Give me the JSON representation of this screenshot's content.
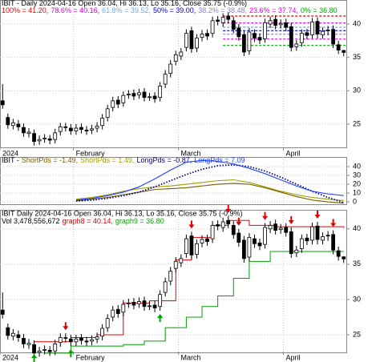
{
  "chart_data": [
    {
      "type": "candlestick",
      "title": "IBIT - Daily 2024-04-16 Open 36.04, Hi 36.13, Lo 35.16, Close 35.75 (-0.9%)",
      "fib": [
        {
          "text": "100% = 41.20,",
          "value": 41.2,
          "color": "#e00000"
        },
        {
          "text": "78.6% = 40.16,",
          "value": 40.16,
          "color": "#d000d0"
        },
        {
          "text": "61.8% = 39.52,",
          "value": 39.52,
          "color": "#6fa8dc"
        },
        {
          "text": "50% = 39.00,",
          "value": 39.0,
          "color": "#0000e0"
        },
        {
          "text": "38.2% = 38.48,",
          "value": 38.48,
          "color": "#8e7cc3"
        },
        {
          "text": "23.6% = 37.74,",
          "value": 37.74,
          "color": "#e000e0"
        },
        {
          "text": "0% = 36.80",
          "value": 36.8,
          "color": "#00a000"
        }
      ],
      "categories": [
        "2024",
        null,
        null,
        null,
        null,
        null,
        null,
        null,
        null,
        null,
        null,
        null,
        null,
        null,
        "February",
        null,
        null,
        null,
        null,
        null,
        null,
        null,
        null,
        null,
        null,
        null,
        null,
        null,
        null,
        null,
        null,
        null,
        null,
        null,
        "March",
        null,
        null,
        null,
        null,
        null,
        null,
        null,
        null,
        null,
        null,
        null,
        null,
        null,
        null,
        null,
        null,
        null,
        null,
        null,
        "April",
        null,
        null,
        null,
        null,
        null,
        null,
        null,
        null,
        null,
        null,
        null
      ],
      "open": [
        28.5,
        26.0,
        24.8,
        25.0,
        24.5,
        23.6,
        23.6,
        22.5,
        22.8,
        22.8,
        22.7,
        23.9,
        24.6,
        24.4,
        24.0,
        24.5,
        24.1,
        24.1,
        24.4,
        24.8,
        26.0,
        27.5,
        28.6,
        28.2,
        29.4,
        29.6,
        29.4,
        29.8,
        29.1,
        29.2,
        29.0,
        31.0,
        32.6,
        34.4,
        35.2,
        36.5,
        39.0,
        36.4,
        38.0,
        38.6,
        38.6,
        40.6,
        40.2,
        41.2,
        40.5,
        39.4,
        38.4,
        36.0,
        38.6,
        38.0,
        37.8,
        40.0,
        40.7,
        39.9,
        40.2,
        39.6,
        36.6,
        37.2,
        38.7,
        38.4,
        40.4,
        38.4,
        39.1,
        39.2,
        36.9,
        36.04
      ],
      "high": [
        31.0,
        26.6,
        25.8,
        25.6,
        25.1,
        24.4,
        24.2,
        23.3,
        23.5,
        23.4,
        24.3,
        25.2,
        25.2,
        25.0,
        25.0,
        25.1,
        24.7,
        24.9,
        25.3,
        26.5,
        27.9,
        29.1,
        29.2,
        29.9,
        30.1,
        30.2,
        30.3,
        30.4,
        29.7,
        29.8,
        31.3,
        33.1,
        34.6,
        36.0,
        36.4,
        39.2,
        39.6,
        38.5,
        39.1,
        39.2,
        41.1,
        41.2,
        41.6,
        41.8,
        41.1,
        40.0,
        39.0,
        39.4,
        39.2,
        38.6,
        40.8,
        41.1,
        41.3,
        40.7,
        40.8,
        40.2,
        37.6,
        39.2,
        39.3,
        40.9,
        41.0,
        39.5,
        39.7,
        39.8,
        37.5,
        36.13
      ],
      "low": [
        27.3,
        24.3,
        24.2,
        24.0,
        23.1,
        23.0,
        21.8,
        21.9,
        22.2,
        22.0,
        22.1,
        23.3,
        23.9,
        23.4,
        23.4,
        23.6,
        23.4,
        23.5,
        23.8,
        24.2,
        25.4,
        26.9,
        27.4,
        27.6,
        28.8,
        28.6,
        28.8,
        28.4,
        28.5,
        28.2,
        28.4,
        30.4,
        32.0,
        33.8,
        34.6,
        35.9,
        35.7,
        35.8,
        37.4,
        37.6,
        38.0,
        39.8,
        39.6,
        40.1,
        38.6,
        37.5,
        35.2,
        35.4,
        37.3,
        37.0,
        37.2,
        39.4,
        39.2,
        39.3,
        38.9,
        35.9,
        36.0,
        36.6,
        37.7,
        37.8,
        37.8,
        37.8,
        38.3,
        36.4,
        35.5,
        35.16
      ],
      "close": [
        27.9,
        24.9,
        25.2,
        24.6,
        23.7,
        23.8,
        22.4,
        22.7,
        22.9,
        22.6,
        23.7,
        24.6,
        24.5,
        24.0,
        24.4,
        24.2,
        24.0,
        24.3,
        24.7,
        25.9,
        27.3,
        28.5,
        28.0,
        29.3,
        29.5,
        29.2,
        29.7,
        29.0,
        29.1,
        28.8,
        30.7,
        32.5,
        34.0,
        35.4,
        35.8,
        38.6,
        36.3,
        37.9,
        38.5,
        38.2,
        40.5,
        40.4,
        41.0,
        40.7,
        39.2,
        38.1,
        35.8,
        38.8,
        37.9,
        37.6,
        40.2,
        40.5,
        39.8,
        40.1,
        39.5,
        36.5,
        37.0,
        38.6,
        38.3,
        40.3,
        38.5,
        38.9,
        39.0,
        37.0,
        36.1,
        35.75
      ],
      "ylim": [
        21.4,
        43.6
      ],
      "yticks": [
        25,
        30,
        35,
        40
      ],
      "grid": true
    },
    {
      "type": "line",
      "title": "IBIT -",
      "x": [
        14,
        17,
        20,
        23,
        26,
        29,
        32,
        35,
        38,
        41,
        44,
        47,
        50,
        53,
        56,
        59,
        62,
        65
      ],
      "xlim": [
        -0.5,
        65.5
      ],
      "series": [
        {
          "name": "ShortPds = -1.49,",
          "color": "#7a5c00",
          "style": "solid",
          "values": [
            1,
            3,
            5,
            8,
            11,
            14,
            15,
            16,
            18,
            20,
            21,
            20,
            16,
            11,
            6,
            2,
            0,
            -1.49
          ]
        },
        {
          "name": "ShortPds = 1.49,",
          "color": "#a0a000",
          "style": "solid",
          "values": [
            3,
            5,
            8,
            12,
            15,
            17,
            18,
            20,
            22,
            24,
            25,
            22,
            17,
            12,
            8,
            5,
            3,
            1.49
          ]
        },
        {
          "name": "LongPds = -0.87,",
          "color": "#000080",
          "style": "dotted",
          "values": [
            1,
            2,
            4,
            7,
            11,
            17,
            24,
            31,
            37,
            41,
            42,
            40,
            35,
            28,
            20,
            12,
            5,
            -0.87
          ]
        },
        {
          "name": "LongPds = 7.09",
          "color": "#2040ff",
          "style": "solid",
          "values": [
            2,
            4,
            7,
            11,
            17,
            26,
            36,
            45,
            47,
            46,
            43,
            38,
            32,
            25,
            18,
            12,
            9,
            7.09
          ]
        }
      ],
      "ylim": [
        -3.6,
        50.9
      ],
      "yticks": [
        0,
        10,
        20,
        30,
        40
      ],
      "grid": true
    },
    {
      "type": "candlestick",
      "title": "IBIT Daily 2024-04-16 Open 36.04, Hi 36.13, Lo 35.16, Close 35.75 (-0.9%)",
      "subtitle": "Vol 3,478,556,672",
      "categories": [
        "2024",
        null,
        null,
        null,
        null,
        null,
        null,
        null,
        null,
        null,
        null,
        null,
        null,
        null,
        "February",
        null,
        null,
        null,
        null,
        null,
        null,
        null,
        null,
        null,
        null,
        null,
        null,
        null,
        null,
        null,
        null,
        null,
        null,
        null,
        "March",
        null,
        null,
        null,
        null,
        null,
        null,
        null,
        null,
        null,
        null,
        null,
        null,
        null,
        null,
        null,
        null,
        null,
        null,
        null,
        "April",
        null,
        null,
        null,
        null,
        null,
        null,
        null,
        null,
        null,
        null,
        null
      ],
      "xlim": [
        -0.5,
        65.5
      ],
      "series": [
        {
          "name": "graph8 = 40.14,",
          "color": "#e00000",
          "x": [
            6,
            13,
            18,
            23,
            28,
            33,
            36,
            40,
            43,
            47,
            52,
            58,
            65
          ],
          "values": [
            24.0,
            24.6,
            25.0,
            29.5,
            29.8,
            35.6,
            38.8,
            40.5,
            41.2,
            40.5,
            40.3,
            40.3,
            40.14
          ]
        },
        {
          "name": "graph9 = 36.80",
          "color": "#00a000",
          "x": [
            8,
            13,
            18,
            23,
            27,
            31,
            35,
            38,
            41,
            44,
            47,
            51,
            65
          ],
          "values": [
            22.4,
            23.4,
            23.4,
            23.6,
            24.1,
            26.0,
            27.5,
            29.0,
            30.5,
            33.0,
            35.4,
            36.8,
            36.8
          ]
        }
      ],
      "sell_signals": [
        12,
        36,
        43,
        45,
        50,
        55,
        60,
        63
      ],
      "sell_color": "#e00000",
      "buy_signals": [
        6,
        13,
        30
      ],
      "buy_color": "#00a000",
      "ylim": [
        22.5,
        42.7
      ],
      "yticks": [
        25,
        30,
        35,
        40
      ],
      "grid": true
    }
  ]
}
